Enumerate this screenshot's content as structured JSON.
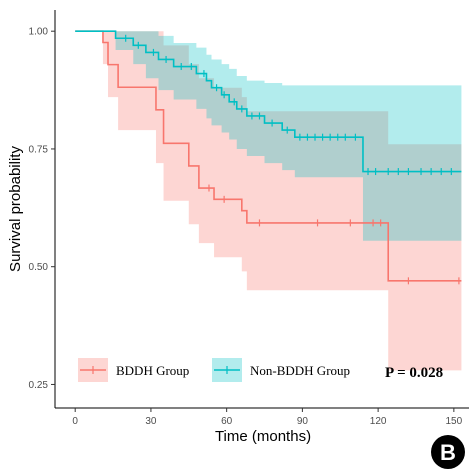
{
  "chart_data": {
    "type": "line",
    "subtype": "kaplan-meier",
    "xlabel": "Time (months)",
    "ylabel": "Survival probability",
    "xlim": [
      -8,
      156
    ],
    "ylim": [
      0.2,
      1.045
    ],
    "xticks": [
      0,
      30,
      60,
      90,
      120,
      150
    ],
    "yticks": [
      0.25,
      0.5,
      0.75,
      1.0
    ],
    "ytick_labels": [
      "0.25",
      "0.50",
      "0.75",
      "1.00"
    ],
    "grid": false,
    "legend_position": "bottom-left inside",
    "annotation": "P = 0.028",
    "panel_letter": "B",
    "series": [
      {
        "name": "BDDH Group",
        "color": "#F8766D",
        "band_color": "#F8766D",
        "steps": [
          [
            0,
            1.0
          ],
          [
            11,
            0.976
          ],
          [
            13,
            0.929
          ],
          [
            17,
            0.881
          ],
          [
            32,
            0.833
          ],
          [
            35,
            0.762
          ],
          [
            45,
            0.714
          ],
          [
            49,
            0.667
          ],
          [
            55,
            0.643
          ],
          [
            66,
            0.619
          ],
          [
            68,
            0.593
          ],
          [
            124,
            0.47
          ],
          [
            153,
            0.47
          ]
        ],
        "upper": [
          [
            0,
            1.0
          ],
          [
            11,
            1.0
          ],
          [
            13,
            1.0
          ],
          [
            17,
            1.0
          ],
          [
            32,
            1.0
          ],
          [
            35,
            0.97
          ],
          [
            45,
            0.93
          ],
          [
            49,
            0.9
          ],
          [
            55,
            0.88
          ],
          [
            66,
            0.86
          ],
          [
            68,
            0.83
          ],
          [
            124,
            0.76
          ],
          [
            153,
            0.76
          ]
        ],
        "lower": [
          [
            0,
            1.0
          ],
          [
            11,
            0.93
          ],
          [
            13,
            0.86
          ],
          [
            17,
            0.79
          ],
          [
            32,
            0.72
          ],
          [
            35,
            0.64
          ],
          [
            45,
            0.59
          ],
          [
            49,
            0.55
          ],
          [
            55,
            0.52
          ],
          [
            66,
            0.49
          ],
          [
            68,
            0.45
          ],
          [
            124,
            0.28
          ],
          [
            153,
            0.28
          ]
        ],
        "censored": [
          53,
          59,
          73,
          96,
          109,
          118,
          121,
          132,
          152
        ]
      },
      {
        "name": "Non-BDDH Group",
        "color": "#00BFC4",
        "band_color": "#00BFC4",
        "steps": [
          [
            0,
            1.0
          ],
          [
            16,
            0.985
          ],
          [
            23,
            0.97
          ],
          [
            28,
            0.955
          ],
          [
            33,
            0.94
          ],
          [
            39,
            0.925
          ],
          [
            48,
            0.91
          ],
          [
            52,
            0.895
          ],
          [
            54,
            0.88
          ],
          [
            58,
            0.865
          ],
          [
            61,
            0.85
          ],
          [
            64,
            0.835
          ],
          [
            68,
            0.82
          ],
          [
            75,
            0.805
          ],
          [
            82,
            0.79
          ],
          [
            87,
            0.775
          ],
          [
            114,
            0.702
          ],
          [
            153,
            0.702
          ]
        ],
        "upper": [
          [
            0,
            1.0
          ],
          [
            16,
            1.0
          ],
          [
            23,
            1.0
          ],
          [
            28,
            1.0
          ],
          [
            33,
            0.99
          ],
          [
            39,
            0.975
          ],
          [
            48,
            0.965
          ],
          [
            52,
            0.95
          ],
          [
            54,
            0.94
          ],
          [
            58,
            0.93
          ],
          [
            61,
            0.92
          ],
          [
            64,
            0.905
          ],
          [
            68,
            0.895
          ],
          [
            75,
            0.89
          ],
          [
            82,
            0.885
          ],
          [
            87,
            0.885
          ],
          [
            114,
            0.885
          ],
          [
            153,
            0.885
          ]
        ],
        "lower": [
          [
            0,
            1.0
          ],
          [
            16,
            0.96
          ],
          [
            23,
            0.93
          ],
          [
            28,
            0.9
          ],
          [
            33,
            0.875
          ],
          [
            39,
            0.855
          ],
          [
            48,
            0.835
          ],
          [
            52,
            0.815
          ],
          [
            54,
            0.8
          ],
          [
            58,
            0.785
          ],
          [
            61,
            0.77
          ],
          [
            64,
            0.75
          ],
          [
            68,
            0.735
          ],
          [
            75,
            0.72
          ],
          [
            82,
            0.705
          ],
          [
            87,
            0.69
          ],
          [
            114,
            0.555
          ],
          [
            153,
            0.555
          ]
        ],
        "censored": [
          20,
          25,
          31,
          36,
          42,
          46,
          51,
          56,
          59,
          63,
          66,
          70,
          73,
          78,
          84,
          89,
          92,
          95,
          98,
          101,
          104,
          107,
          111,
          116,
          119,
          124,
          128,
          132,
          137,
          141,
          145,
          149
        ]
      }
    ]
  }
}
